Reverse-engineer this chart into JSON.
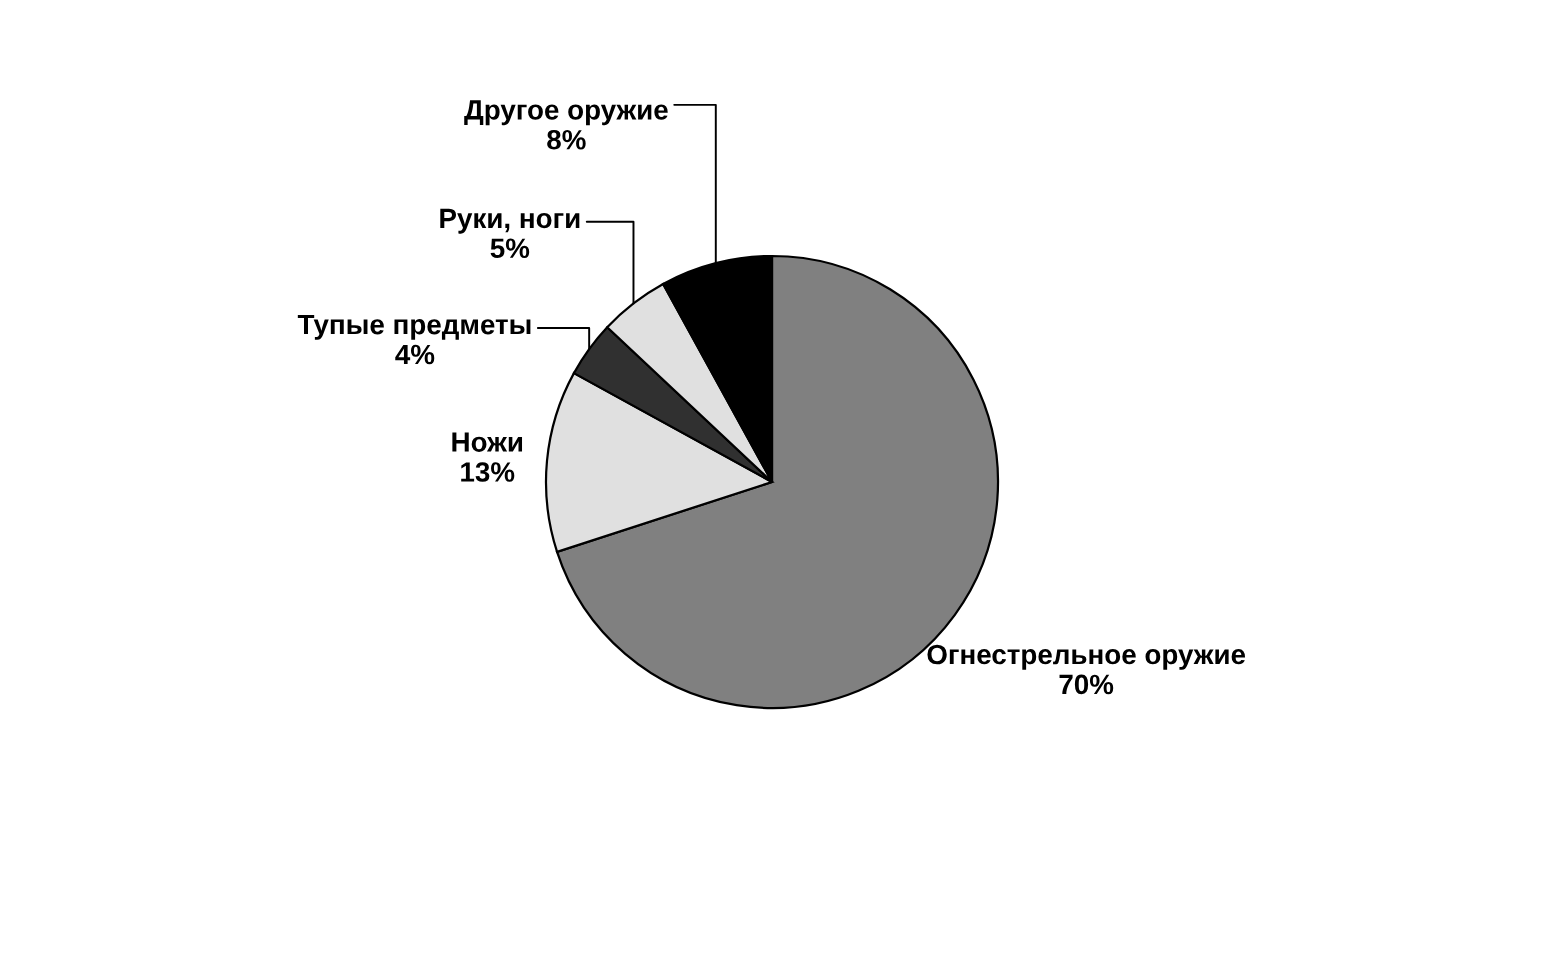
{
  "chart_data": {
    "type": "pie",
    "categories": [
      "Огнестрельное оружие",
      "Ножи",
      "Тупые предметы",
      "Руки, ноги",
      "Другое оружие"
    ],
    "values": [
      70,
      13,
      4,
      5,
      8
    ],
    "value_labels": [
      "70%",
      "13%",
      "4%",
      "5%",
      "8%"
    ],
    "colors": [
      "#808080",
      "#e0e0e0",
      "#303030",
      "#e0e0e0",
      "#000000"
    ]
  }
}
